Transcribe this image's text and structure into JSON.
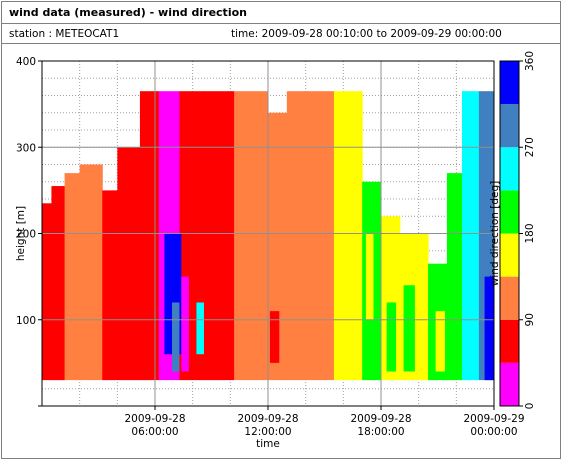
{
  "header": {
    "title": "wind data (measured) - wind direction",
    "station": "station : METEOCAT1",
    "time_range": "time: 2009-09-28 00:10:00 to 2009-09-29 00:00:00"
  },
  "chart_data": {
    "type": "heatmap",
    "title": "wind data (measured) - wind direction",
    "xlabel": "time",
    "ylabel": "height [m]",
    "colorbar_label": "wind direction [deg]",
    "x_range_hours": [
      0,
      24
    ],
    "ylim": [
      0,
      400
    ],
    "y_ticks": [
      0,
      100,
      200,
      300,
      400
    ],
    "y_tick_labels": [
      "",
      "100",
      "200",
      "300",
      "400"
    ],
    "x_ticks": [
      {
        "hour": 6,
        "line1": "2009-09-28",
        "line2": "06:00:00"
      },
      {
        "hour": 12,
        "line1": "2009-09-28",
        "line2": "12:00:00"
      },
      {
        "hour": 18,
        "line1": "2009-09-28",
        "line2": "18:00:00"
      },
      {
        "hour": 24,
        "line1": "2009-09-29",
        "line2": "00:00:00"
      }
    ],
    "colorbar": {
      "range": [
        0,
        360
      ],
      "ticks": [
        0,
        90,
        180,
        270,
        360
      ],
      "tick_labels": [
        "0",
        "90",
        "180",
        "270",
        "360"
      ],
      "bins": [
        {
          "from": 0,
          "to": 45,
          "color": "#ff00ff"
        },
        {
          "from": 45,
          "to": 90,
          "color": "#ff0000"
        },
        {
          "from": 90,
          "to": 135,
          "color": "#ff8040"
        },
        {
          "from": 135,
          "to": 180,
          "color": "#ffff00"
        },
        {
          "from": 180,
          "to": 225,
          "color": "#00ff00"
        },
        {
          "from": 225,
          "to": 270,
          "color": "#00ffff"
        },
        {
          "from": 270,
          "to": 315,
          "color": "#4080c0"
        },
        {
          "from": 315,
          "to": 360,
          "color": "#0000ff"
        }
      ]
    },
    "data_height_range_m": [
      30,
      365
    ],
    "segments": [
      {
        "t0": 0.0,
        "t1": 0.5,
        "top": 235,
        "dir": 60
      },
      {
        "t0": 0.5,
        "t1": 1.2,
        "top": 255,
        "dir": 60
      },
      {
        "t0": 1.2,
        "t1": 2.0,
        "top": 270,
        "dir": 110
      },
      {
        "t0": 2.0,
        "t1": 3.2,
        "top": 280,
        "dir": 110
      },
      {
        "t0": 3.2,
        "t1": 4.0,
        "top": 250,
        "dir": 60
      },
      {
        "t0": 4.0,
        "t1": 5.2,
        "top": 300,
        "dir": 60
      },
      {
        "t0": 5.2,
        "t1": 6.2,
        "top": 365,
        "dir": 60
      },
      {
        "t0": 6.2,
        "t1": 7.3,
        "top": 365,
        "dir": 20
      },
      {
        "t0": 7.3,
        "t1": 8.6,
        "top": 365,
        "dir": 60
      },
      {
        "t0": 8.6,
        "t1": 10.2,
        "top": 365,
        "dir": 60
      },
      {
        "t0": 10.2,
        "t1": 12.0,
        "top": 365,
        "dir": 110
      },
      {
        "t0": 12.0,
        "t1": 13.0,
        "top": 340,
        "dir": 110
      },
      {
        "t0": 13.0,
        "t1": 14.2,
        "top": 365,
        "dir": 110
      },
      {
        "t0": 14.2,
        "t1": 15.5,
        "top": 365,
        "dir": 110
      },
      {
        "t0": 15.5,
        "t1": 17.0,
        "top": 365,
        "dir": 160
      },
      {
        "t0": 17.0,
        "t1": 18.0,
        "top": 260,
        "dir": 200
      },
      {
        "t0": 18.0,
        "t1": 19.0,
        "top": 220,
        "dir": 160
      },
      {
        "t0": 19.0,
        "t1": 20.5,
        "top": 200,
        "dir": 160
      },
      {
        "t0": 20.5,
        "t1": 21.5,
        "top": 165,
        "dir": 200
      },
      {
        "t0": 21.5,
        "t1": 22.3,
        "top": 270,
        "dir": 200
      },
      {
        "t0": 22.3,
        "t1": 23.2,
        "top": 365,
        "dir": 250
      },
      {
        "t0": 23.2,
        "t1": 24.0,
        "top": 365,
        "dir": 290
      }
    ],
    "patches": [
      {
        "t0": 6.5,
        "t1": 7.4,
        "h0": 60,
        "h1": 200,
        "dir": 340
      },
      {
        "t0": 6.9,
        "t1": 7.3,
        "h0": 40,
        "h1": 120,
        "dir": 290
      },
      {
        "t0": 7.4,
        "t1": 7.8,
        "h0": 40,
        "h1": 150,
        "dir": 20
      },
      {
        "t0": 8.2,
        "t1": 8.6,
        "h0": 60,
        "h1": 120,
        "dir": 250
      },
      {
        "t0": 12.1,
        "t1": 12.6,
        "h0": 50,
        "h1": 110,
        "dir": 60
      },
      {
        "t0": 17.2,
        "t1": 17.6,
        "h0": 100,
        "h1": 200,
        "dir": 160
      },
      {
        "t0": 18.3,
        "t1": 18.8,
        "h0": 40,
        "h1": 120,
        "dir": 200
      },
      {
        "t0": 19.2,
        "t1": 19.8,
        "h0": 40,
        "h1": 140,
        "dir": 200
      },
      {
        "t0": 20.9,
        "t1": 21.4,
        "h0": 40,
        "h1": 110,
        "dir": 160
      },
      {
        "t0": 23.5,
        "t1": 24.0,
        "h0": 30,
        "h1": 150,
        "dir": 340
      }
    ]
  }
}
